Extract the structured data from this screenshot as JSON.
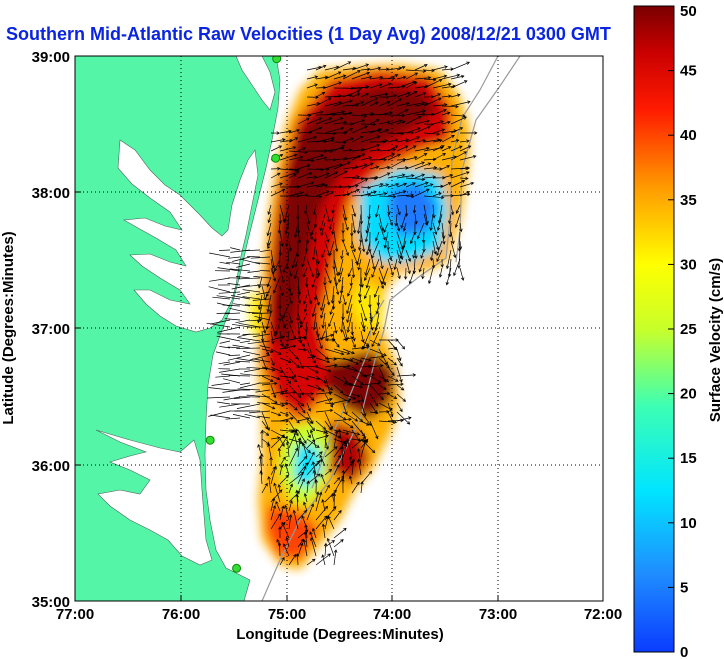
{
  "map": {
    "title": "Southern Mid-Atlantic Raw Velocities (1 Day Avg) 2008/12/21 0300 GMT",
    "xlabel": "Longitude (Degrees:Minutes)",
    "ylabel": "Latitude (Degrees:Minutes)",
    "x_ticks": [
      "77:00",
      "76:00",
      "75:00",
      "74:00",
      "73:00",
      "72:00"
    ],
    "y_ticks": [
      "39:00",
      "38:00",
      "37:00",
      "36:00",
      "35:00"
    ],
    "lon_range": [
      -77,
      -72
    ],
    "lat_range": [
      35,
      39
    ],
    "grid": true,
    "land_color": "#55f5a8",
    "water_color": "#ffffff"
  },
  "colorbar": {
    "label": "Surface Velocity (cm/s)",
    "ticks": [
      "50",
      "45",
      "40",
      "35",
      "30",
      "25",
      "20",
      "15",
      "10",
      "5",
      "0"
    ],
    "range": [
      0,
      50
    ],
    "colormap": "jet"
  },
  "stations": [
    {
      "lon": -75.09,
      "lat": 38.98
    },
    {
      "lon": -75.1,
      "lat": 38.25
    },
    {
      "lon": -75.72,
      "lat": 36.18
    },
    {
      "lon": -75.47,
      "lat": 35.24
    }
  ]
}
